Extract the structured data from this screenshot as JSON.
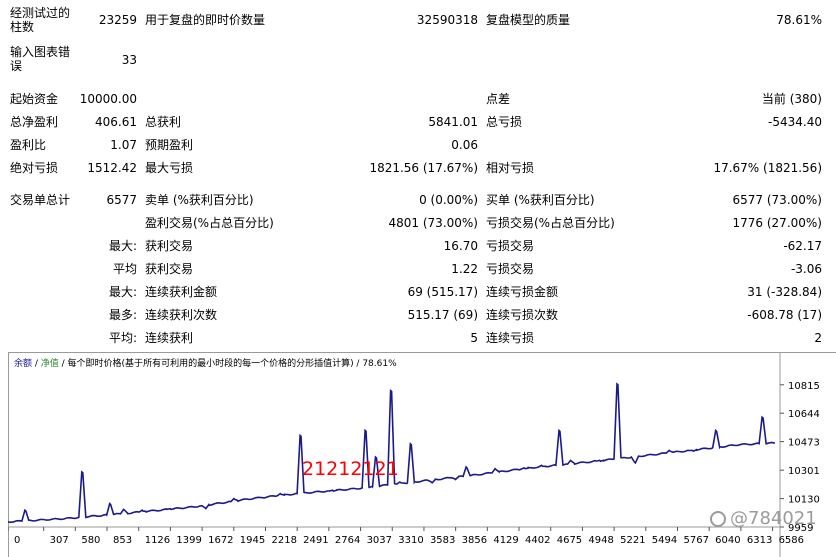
{
  "stats": {
    "bars_tested_label": "经测试过的柱数",
    "bars_tested_value": "23259",
    "ticks_label": "用于复盘的即时价数量",
    "ticks_value": "32590318",
    "quality_label": "复盘模型的质量",
    "quality_value": "78.61%",
    "chart_errors_label": "输入图表错误",
    "chart_errors_value": "33",
    "initial_deposit_label": "起始资金",
    "initial_deposit_value": "10000.00",
    "spread_label": "点差",
    "spread_value": "当前 (380)",
    "net_profit_label": "总净盈利",
    "net_profit_value": "406.61",
    "gross_profit_label": "总获利",
    "gross_profit_value": "5841.01",
    "gross_loss_label": "总亏损",
    "gross_loss_value": "-5434.40",
    "profit_factor_label": "盈利比",
    "profit_factor_value": "1.07",
    "expected_payoff_label": "预期盈利",
    "expected_payoff_value": "0.06",
    "abs_drawdown_label": "绝对亏损",
    "abs_drawdown_value": "1512.42",
    "max_drawdown_label": "最大亏损",
    "max_drawdown_value": "1821.56 (17.67%)",
    "rel_drawdown_label": "相对亏损",
    "rel_drawdown_value": "17.67% (1821.56)",
    "total_trades_label": "交易单总计",
    "total_trades_value": "6577",
    "short_label": "卖单 (%获利百分比)",
    "short_value": "0 (0.00%)",
    "long_label": "买单 (%获利百分比)",
    "long_value": "6577 (73.00%)",
    "profit_trades_label": "盈利交易(%占总百分比)",
    "profit_trades_value": "4801 (73.00%)",
    "loss_trades_label": "亏损交易(%占总百分比)",
    "loss_trades_value": "1776 (27.00%)",
    "largest_label": "最大:",
    "largest_profit_label": "获利交易",
    "largest_profit_value": "16.70",
    "largest_loss_label": "亏损交易",
    "largest_loss_value": "-62.17",
    "average_label": "平均",
    "avg_profit_label": "获利交易",
    "avg_profit_value": "1.22",
    "avg_loss_label": "亏损交易",
    "avg_loss_value": "-3.06",
    "max_cons_label": "最大:",
    "max_cons_wins_label": "连续获利金额",
    "max_cons_wins_value": "69 (515.17)",
    "max_cons_losses_label": "连续亏损金额",
    "max_cons_losses_value": "31 (-328.84)",
    "maximal_label": "最多:",
    "maximal_cons_profit_label": "连续获利次数",
    "maximal_cons_profit_value": "515.17 (69)",
    "maximal_cons_loss_label": "连续亏损次数",
    "maximal_cons_loss_value": "-608.78 (17)",
    "avg_cons_label": "平均:",
    "avg_cons_wins_label": "连续获利",
    "avg_cons_wins_value": "5",
    "avg_cons_losses_label": "连续亏损",
    "avg_cons_losses_value": "2"
  },
  "chart_legend": {
    "balance": "余额",
    "sep1": " / ",
    "equity": "净值",
    "description": " / 每个即时价格(基于所有可利用的最小时段的每一个价格的分形插值计算) / 78.61%"
  },
  "overlay_text": "21212121",
  "watermark": "@784021",
  "colors": {
    "balance_line": "#1a1a8c",
    "legend_balance": "#1a1a8c",
    "legend_equity": "#2e8b2e",
    "overlay": "#ff0000"
  },
  "chart_data": {
    "type": "line",
    "x_ticks": [
      "0",
      "307",
      "580",
      "853",
      "1126",
      "1399",
      "1672",
      "1945",
      "2218",
      "2491",
      "2764",
      "3037",
      "3310",
      "3583",
      "3856",
      "4129",
      "4402",
      "4675",
      "4948",
      "5221",
      "5494",
      "5767",
      "6040",
      "6313",
      "6586"
    ],
    "y_ticks": [
      "10815",
      "10644",
      "10473",
      "10301",
      "10130",
      "9959"
    ],
    "ylim": [
      9959,
      10880
    ],
    "xlim": [
      0,
      6650
    ],
    "series": [
      {
        "baseline": [
          [
            0,
            9990
          ],
          [
            500,
            10010
          ],
          [
            1000,
            10040
          ],
          [
            1600,
            10080
          ],
          [
            2100,
            10130
          ],
          [
            2491,
            10160
          ],
          [
            3000,
            10190
          ],
          [
            3500,
            10230
          ],
          [
            4000,
            10270
          ],
          [
            4500,
            10315
          ],
          [
            5000,
            10350
          ],
          [
            5500,
            10390
          ],
          [
            6000,
            10430
          ],
          [
            6300,
            10455
          ],
          [
            6620,
            10465
          ]
        ],
        "spikes": [
          [
            150,
            10060
          ],
          [
            640,
            10290
          ],
          [
            880,
            10100
          ],
          [
            1000,
            10065
          ],
          [
            1160,
            10060
          ],
          [
            1400,
            10070
          ],
          [
            1700,
            10075
          ],
          [
            1950,
            10130
          ],
          [
            2350,
            10160
          ],
          [
            2520,
            10510
          ],
          [
            2800,
            10180
          ],
          [
            3080,
            10540
          ],
          [
            3170,
            10380
          ],
          [
            3300,
            10780
          ],
          [
            3380,
            10230
          ],
          [
            3470,
            10460
          ],
          [
            3650,
            10230
          ],
          [
            3850,
            10250
          ],
          [
            3950,
            10320
          ],
          [
            4200,
            10310
          ],
          [
            4450,
            10315
          ],
          [
            4600,
            10330
          ],
          [
            4750,
            10540
          ],
          [
            4850,
            10360
          ],
          [
            5100,
            10360
          ],
          [
            5250,
            10820
          ],
          [
            5400,
            10350
          ],
          [
            5700,
            10420
          ],
          [
            5900,
            10420
          ],
          [
            6100,
            10540
          ],
          [
            6500,
            10620
          ]
        ]
      }
    ]
  }
}
